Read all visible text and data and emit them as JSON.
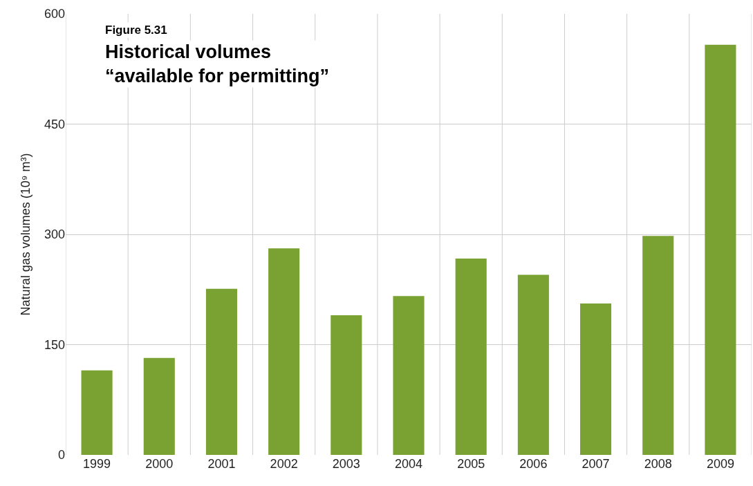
{
  "chart_data": {
    "type": "bar",
    "subtitle": "Figure 5.31",
    "title": "Historical volumes\n“available for permitting”",
    "ylabel": "Natural gas volumes (10⁹ m³)",
    "categories": [
      "1999",
      "2000",
      "2001",
      "2002",
      "2003",
      "2004",
      "2005",
      "2006",
      "2007",
      "2008",
      "2009"
    ],
    "values": [
      115,
      132,
      226,
      281,
      190,
      216,
      267,
      245,
      206,
      298,
      558
    ],
    "color": "#7aa232",
    "ylim": [
      0,
      600
    ],
    "yticks": [
      0,
      150,
      300,
      450,
      600
    ],
    "grid": true
  }
}
